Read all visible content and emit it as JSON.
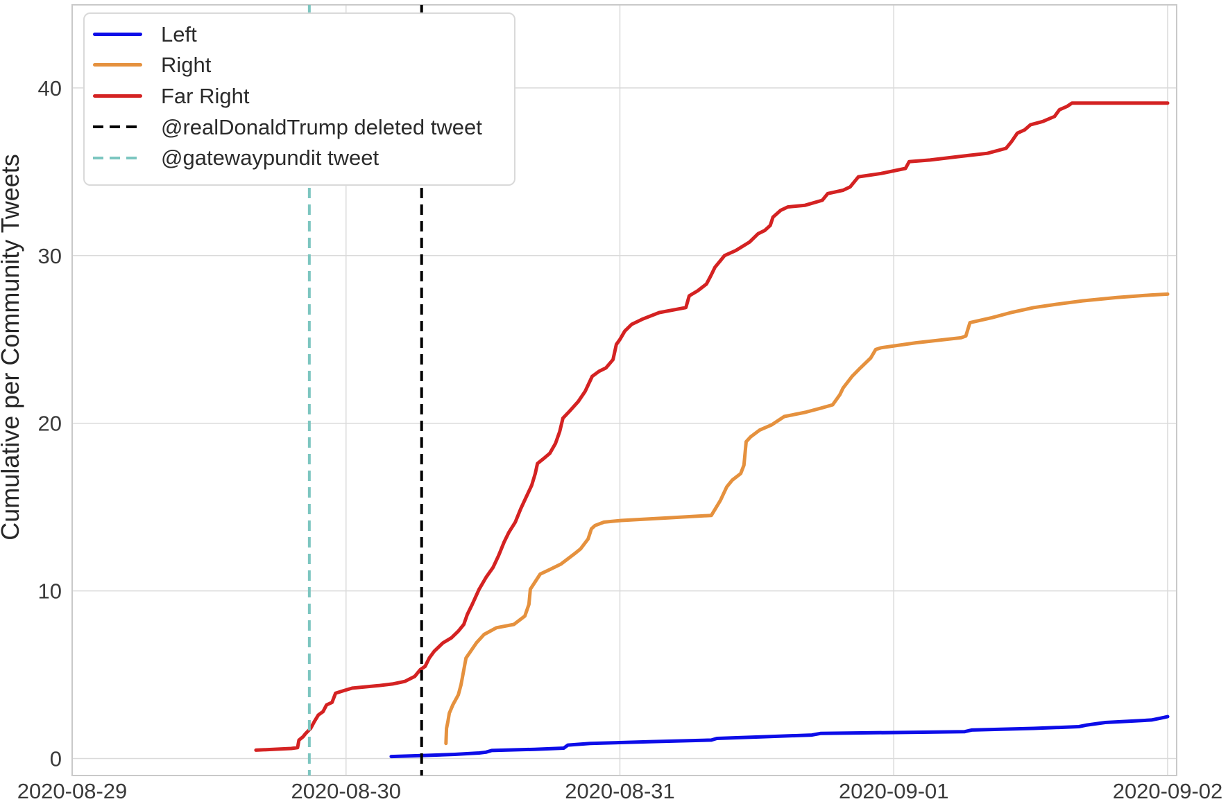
{
  "chart_data": {
    "type": "line",
    "title": "",
    "grid": true,
    "legend_position": "upper left",
    "x_axis": {
      "label": "",
      "tick_labels": [
        "2020-08-29",
        "2020-08-30",
        "2020-08-31",
        "2020-09-01",
        "2020-09-02"
      ],
      "tick_values_days": [
        0,
        1,
        2,
        3,
        4
      ],
      "range_days": [
        0,
        4.033
      ]
    },
    "y_axis": {
      "label": "Cumulative per Community Tweets",
      "tick_labels": [
        "0",
        "10",
        "20",
        "30",
        "40"
      ],
      "tick_values": [
        0,
        10,
        20,
        30,
        40
      ],
      "range": [
        -1.05,
        45.0
      ]
    },
    "series": [
      {
        "name": "Left",
        "color": "#0d0de8",
        "style": "solid",
        "points_day_value": [
          [
            1.165,
            0.12
          ],
          [
            1.284,
            0.18
          ],
          [
            1.397,
            0.25
          ],
          [
            1.486,
            0.33
          ],
          [
            1.511,
            0.38
          ],
          [
            1.532,
            0.48
          ],
          [
            1.689,
            0.55
          ],
          [
            1.795,
            0.62
          ],
          [
            1.81,
            0.8
          ],
          [
            1.891,
            0.9
          ],
          [
            2.106,
            1.0
          ],
          [
            2.334,
            1.1
          ],
          [
            2.354,
            1.2
          ],
          [
            2.524,
            1.3
          ],
          [
            2.701,
            1.4
          ],
          [
            2.734,
            1.5
          ],
          [
            3.258,
            1.6
          ],
          [
            3.284,
            1.7
          ],
          [
            3.511,
            1.8
          ],
          [
            3.676,
            1.9
          ],
          [
            3.706,
            2.0
          ],
          [
            3.772,
            2.15
          ],
          [
            3.886,
            2.25
          ],
          [
            3.941,
            2.3
          ],
          [
            3.987,
            2.45
          ],
          [
            4.0,
            2.5
          ]
        ]
      },
      {
        "name": "Right",
        "color": "#e5913e",
        "style": "solid",
        "points_day_value": [
          [
            1.365,
            0.9
          ],
          [
            1.367,
            1.8
          ],
          [
            1.372,
            2.2
          ],
          [
            1.377,
            2.7
          ],
          [
            1.39,
            3.2
          ],
          [
            1.41,
            3.8
          ],
          [
            1.42,
            4.4
          ],
          [
            1.428,
            5.1
          ],
          [
            1.438,
            6.0
          ],
          [
            1.451,
            6.3
          ],
          [
            1.476,
            6.9
          ],
          [
            1.504,
            7.4
          ],
          [
            1.549,
            7.8
          ],
          [
            1.613,
            8.0
          ],
          [
            1.653,
            8.5
          ],
          [
            1.668,
            9.2
          ],
          [
            1.673,
            10.1
          ],
          [
            1.689,
            10.5
          ],
          [
            1.709,
            11.0
          ],
          [
            1.747,
            11.3
          ],
          [
            1.785,
            11.6
          ],
          [
            1.833,
            12.2
          ],
          [
            1.856,
            12.5
          ],
          [
            1.884,
            13.1
          ],
          [
            1.896,
            13.7
          ],
          [
            1.909,
            13.9
          ],
          [
            1.942,
            14.1
          ],
          [
            2.005,
            14.2
          ],
          [
            2.17,
            14.35
          ],
          [
            2.334,
            14.5
          ],
          [
            2.367,
            15.4
          ],
          [
            2.39,
            16.2
          ],
          [
            2.41,
            16.6
          ],
          [
            2.441,
            17.0
          ],
          [
            2.453,
            17.5
          ],
          [
            2.461,
            18.9
          ],
          [
            2.478,
            19.2
          ],
          [
            2.511,
            19.6
          ],
          [
            2.554,
            19.9
          ],
          [
            2.6,
            20.4
          ],
          [
            2.676,
            20.65
          ],
          [
            2.734,
            20.9
          ],
          [
            2.777,
            21.1
          ],
          [
            2.803,
            21.7
          ],
          [
            2.815,
            22.1
          ],
          [
            2.848,
            22.8
          ],
          [
            2.878,
            23.3
          ],
          [
            2.916,
            23.9
          ],
          [
            2.934,
            24.4
          ],
          [
            2.954,
            24.5
          ],
          [
            3.081,
            24.8
          ],
          [
            3.246,
            25.1
          ],
          [
            3.263,
            25.2
          ],
          [
            3.278,
            26.0
          ],
          [
            3.359,
            26.3
          ],
          [
            3.428,
            26.6
          ],
          [
            3.511,
            26.9
          ],
          [
            3.595,
            27.1
          ],
          [
            3.689,
            27.3
          ],
          [
            3.815,
            27.5
          ],
          [
            3.941,
            27.65
          ],
          [
            4.0,
            27.7
          ]
        ]
      },
      {
        "name": "Far Right",
        "color": "#d42222",
        "style": "solid",
        "points_day_value": [
          [
            0.671,
            0.5
          ],
          [
            0.8,
            0.6
          ],
          [
            0.823,
            0.65
          ],
          [
            0.828,
            1.1
          ],
          [
            0.843,
            1.3
          ],
          [
            0.853,
            1.5
          ],
          [
            0.871,
            1.8
          ],
          [
            0.884,
            2.2
          ],
          [
            0.899,
            2.6
          ],
          [
            0.916,
            2.8
          ],
          [
            0.929,
            3.2
          ],
          [
            0.949,
            3.35
          ],
          [
            0.962,
            3.9
          ],
          [
            0.992,
            4.05
          ],
          [
            1.023,
            4.2
          ],
          [
            1.119,
            4.35
          ],
          [
            1.17,
            4.45
          ],
          [
            1.215,
            4.6
          ],
          [
            1.251,
            4.9
          ],
          [
            1.271,
            5.3
          ],
          [
            1.289,
            5.5
          ],
          [
            1.304,
            6.0
          ],
          [
            1.322,
            6.4
          ],
          [
            1.354,
            6.9
          ],
          [
            1.385,
            7.2
          ],
          [
            1.41,
            7.6
          ],
          [
            1.43,
            8.0
          ],
          [
            1.443,
            8.6
          ],
          [
            1.461,
            9.2
          ],
          [
            1.486,
            10.1
          ],
          [
            1.511,
            10.8
          ],
          [
            1.537,
            11.4
          ],
          [
            1.557,
            12.1
          ],
          [
            1.577,
            12.9
          ],
          [
            1.595,
            13.5
          ],
          [
            1.618,
            14.1
          ],
          [
            1.638,
            14.9
          ],
          [
            1.658,
            15.6
          ],
          [
            1.678,
            16.3
          ],
          [
            1.691,
            17.0
          ],
          [
            1.699,
            17.6
          ],
          [
            1.722,
            17.9
          ],
          [
            1.744,
            18.2
          ],
          [
            1.765,
            18.8
          ],
          [
            1.78,
            19.5
          ],
          [
            1.792,
            20.3
          ],
          [
            1.815,
            20.7
          ],
          [
            1.848,
            21.3
          ],
          [
            1.873,
            21.9
          ],
          [
            1.899,
            22.8
          ],
          [
            1.924,
            23.1
          ],
          [
            1.949,
            23.3
          ],
          [
            1.975,
            23.8
          ],
          [
            1.987,
            24.7
          ],
          [
            2.0,
            25.0
          ],
          [
            2.018,
            25.5
          ],
          [
            2.043,
            25.9
          ],
          [
            2.081,
            26.2
          ],
          [
            2.144,
            26.6
          ],
          [
            2.241,
            26.9
          ],
          [
            2.253,
            27.6
          ],
          [
            2.284,
            27.9
          ],
          [
            2.316,
            28.3
          ],
          [
            2.332,
            28.8
          ],
          [
            2.347,
            29.3
          ],
          [
            2.367,
            29.7
          ],
          [
            2.382,
            30.0
          ],
          [
            2.423,
            30.3
          ],
          [
            2.473,
            30.8
          ],
          [
            2.504,
            31.3
          ],
          [
            2.529,
            31.5
          ],
          [
            2.549,
            31.8
          ],
          [
            2.559,
            32.3
          ],
          [
            2.587,
            32.7
          ],
          [
            2.613,
            32.9
          ],
          [
            2.676,
            33.0
          ],
          [
            2.739,
            33.3
          ],
          [
            2.759,
            33.7
          ],
          [
            2.815,
            33.9
          ],
          [
            2.841,
            34.1
          ],
          [
            2.871,
            34.7
          ],
          [
            2.954,
            34.9
          ],
          [
            3.043,
            35.2
          ],
          [
            3.056,
            35.6
          ],
          [
            3.132,
            35.7
          ],
          [
            3.233,
            35.9
          ],
          [
            3.342,
            36.1
          ],
          [
            3.41,
            36.4
          ],
          [
            3.43,
            36.8
          ],
          [
            3.451,
            37.3
          ],
          [
            3.478,
            37.5
          ],
          [
            3.499,
            37.8
          ],
          [
            3.544,
            38.0
          ],
          [
            3.587,
            38.3
          ],
          [
            3.605,
            38.7
          ],
          [
            3.633,
            38.9
          ],
          [
            3.651,
            39.1
          ],
          [
            4.0,
            39.1
          ]
        ]
      }
    ],
    "events": [
      {
        "name": "@realDonaldTrump deleted tweet",
        "color": "#000000",
        "style": "dashed",
        "day": 1.276
      },
      {
        "name": "@gatewaypundit tweet",
        "color": "#7cc6c0",
        "style": "dashed",
        "day": 0.866
      }
    ],
    "legend_entries": [
      {
        "label": "Left",
        "color": "#0d0de8",
        "style": "solid"
      },
      {
        "label": "Right",
        "color": "#e5913e",
        "style": "solid"
      },
      {
        "label": "Far Right",
        "color": "#d42222",
        "style": "solid"
      },
      {
        "label": "@realDonaldTrump deleted tweet",
        "color": "#000000",
        "style": "dashed"
      },
      {
        "label": "@gatewaypundit tweet",
        "color": "#7cc6c0",
        "style": "dashed"
      }
    ]
  },
  "colors": {
    "background": "#ffffff",
    "grid": "#dadada",
    "plot_border": "#c9c9c9",
    "tick_text": "#3a3a3a",
    "axis_title_text": "#262626",
    "legend_text": "#2b2b2b"
  }
}
